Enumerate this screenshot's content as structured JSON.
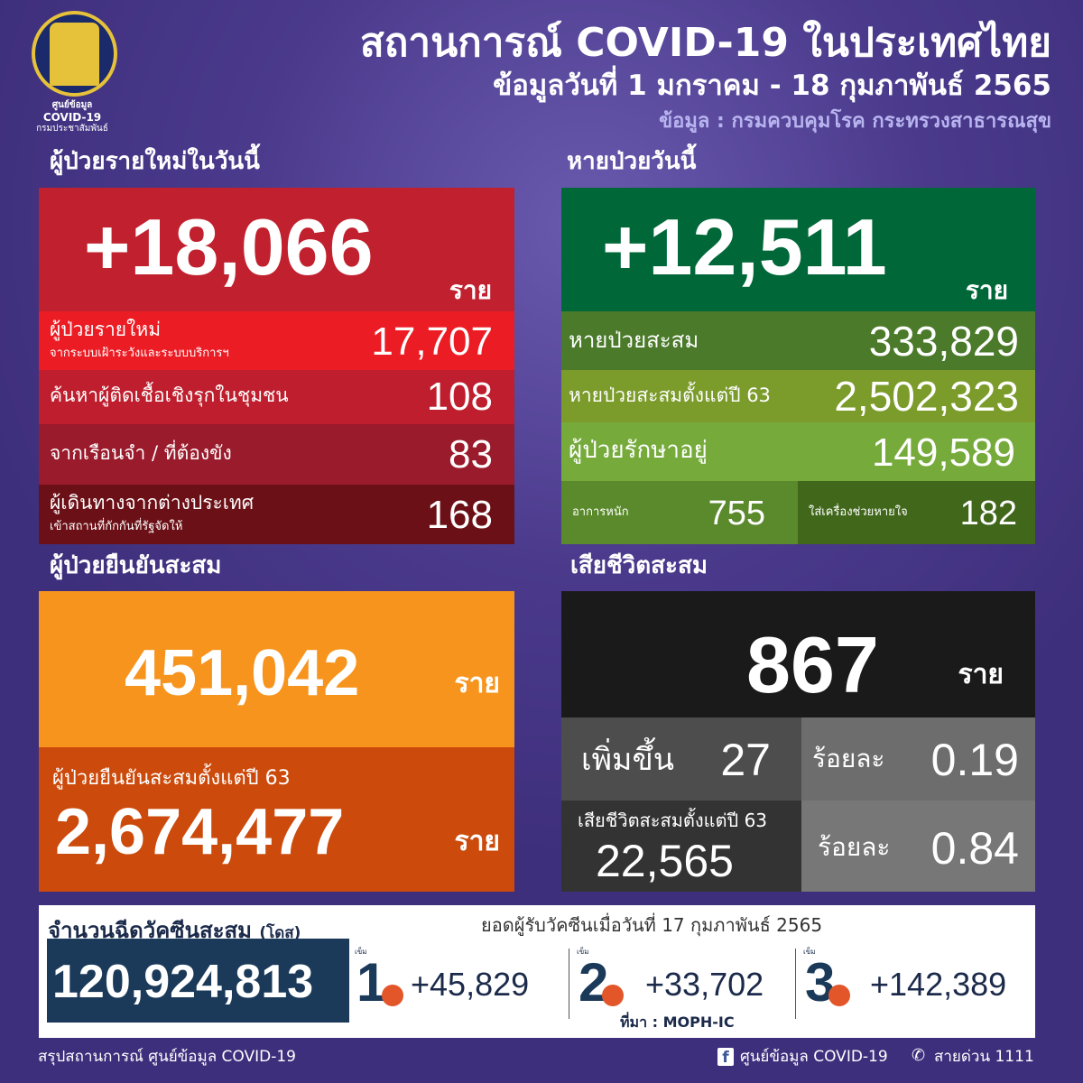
{
  "header": {
    "title": "สถานการณ์ COVID-19 ในประเทศไทย",
    "date_range": "ข้อมูลวันที่ 1 มกราคม  - 18 กุมภาพันธ์ 2565",
    "source": "ข้อมูล : กรมควบคุมโรค กระทรวงสาธารณสุข"
  },
  "logo": {
    "line1": "ศูนย์ข้อมูล",
    "line2": "COVID-19",
    "line3": "กรมประชาสัมพันธ์"
  },
  "new_cases": {
    "heading": "ผู้ป่วยรายใหม่ในวันนี้",
    "total": "+18,066",
    "unit": "ราย",
    "rows": [
      {
        "label": "ผู้ป่วยรายใหม่",
        "sub": "จากระบบเฝ้าระวังและระบบบริการฯ",
        "value": "17,707"
      },
      {
        "label": "ค้นหาผู้ติดเชื้อเชิงรุกในชุมชน",
        "value": "108"
      },
      {
        "label": "จากเรือนจำ / ที่ต้องขัง",
        "value": "83"
      },
      {
        "label": "ผู้เดินทางจากต่างประเทศ",
        "sub": "เข้าสถานที่กักกันที่รัฐจัดให้",
        "value": "168"
      }
    ]
  },
  "recovered": {
    "heading": "หายป่วยวันนี้",
    "total": "+12,511",
    "unit": "ราย",
    "rows": [
      {
        "label": "หายป่วยสะสม",
        "value": "333,829"
      },
      {
        "label": "หายป่วยสะสมตั้งแต่ปี 63",
        "value": "2,502,323"
      },
      {
        "label": "ผู้ป่วยรักษาอยู่",
        "value": "149,589"
      }
    ],
    "severe_label": "อาการหนัก",
    "severe_value": "755",
    "ventilator_label": "ใส่เครื่องช่วยหายใจ",
    "ventilator_value": "182"
  },
  "confirmed": {
    "heading": "ผู้ป่วยยืนยันสะสม",
    "total": "451,042",
    "unit": "ราย",
    "since63_label": "ผู้ป่วยยืนยันสะสมตั้งแต่ปี 63",
    "since63_value": "2,674,477",
    "since63_unit": "ราย"
  },
  "deaths": {
    "heading": "เสียชีวิตสะสม",
    "total": "867",
    "unit": "ราย",
    "increase_label": "เพิ่มขึ้น",
    "increase_value": "27",
    "pct_label": "ร้อยละ",
    "pct_value": "0.19",
    "since63_label": "เสียชีวิตสะสมตั้งแต่ปี 63",
    "since63_value": "22,565",
    "pct63_label": "ร้อยละ",
    "pct63_value": "0.84"
  },
  "vaccine": {
    "heading": "จำนวนฉีดวัคซีนสะสม",
    "heading_unit": "(โดส)",
    "total": "120,924,813",
    "daily_heading": "ยอดผู้รับวัคซีนเมื่อวันที่ 17 กุมภาพันธ์ 2565",
    "dose_label": "เข็ม",
    "doses": [
      {
        "n": "1",
        "value": "+45,829"
      },
      {
        "n": "2",
        "value": "+33,702"
      },
      {
        "n": "3",
        "value": "+142,389"
      }
    ],
    "source": "ที่มา : MOPH-IC"
  },
  "footer": {
    "left": "สรุปสถานการณ์ ศูนย์ข้อมูล COVID-19",
    "facebook": "ศูนย์ข้อมูล COVID-19",
    "hotline": "สายด่วน 1111"
  },
  "colors": {
    "red": "#c1202e",
    "green_dark": "#006838",
    "orange": "#f7941d",
    "black": "#1a1a1a",
    "navy": "#1b3a5a",
    "background": "#4b3a8c"
  }
}
